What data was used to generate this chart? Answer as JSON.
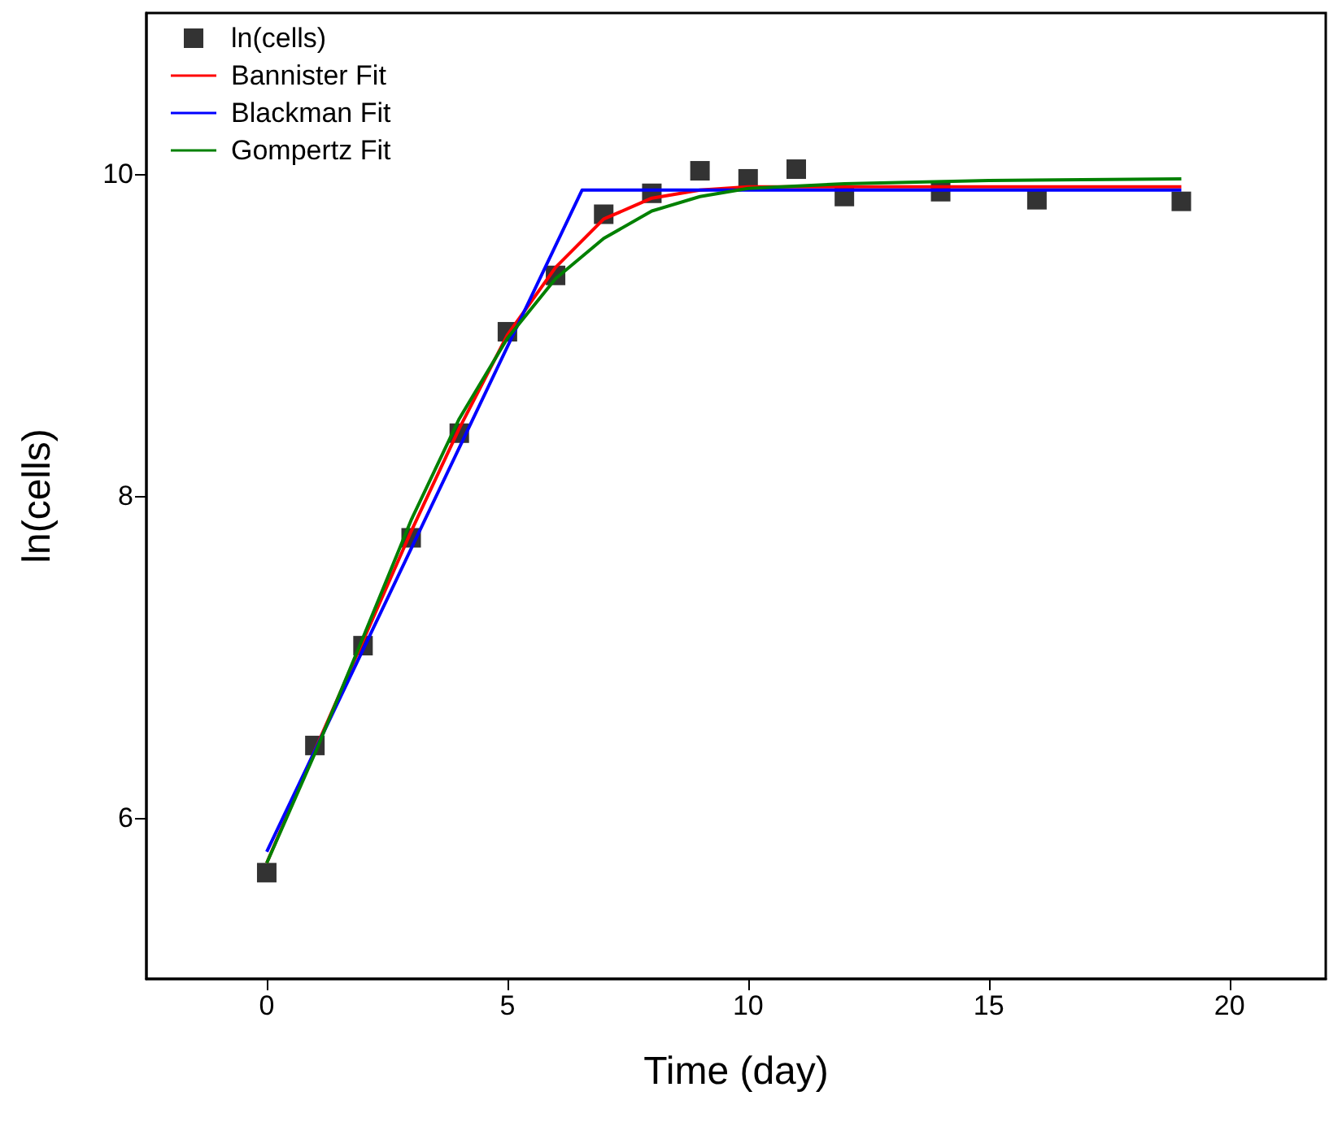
{
  "chart_data": {
    "type": "line",
    "xlabel": "Time (day)",
    "ylabel": "ln(cells)",
    "xlim": [
      -2.5,
      22
    ],
    "xticks": [
      0,
      5,
      10,
      15,
      20
    ],
    "ylim": [
      5,
      11
    ],
    "yticks": [
      6,
      8,
      10
    ],
    "grid": false,
    "legend": "top left",
    "series": [
      {
        "name": "ln(cells)",
        "type": "scatter",
        "marker": "square",
        "color": "#000000",
        "x": [
          0,
          1,
          2,
          3,
          4,
          5,
          6,
          7,
          8,
          9,
          10,
          11,
          12,
          14,
          16,
          19
        ],
        "values": [
          5.66,
          6.45,
          7.07,
          7.74,
          8.39,
          9.02,
          9.37,
          9.75,
          9.88,
          10.02,
          9.97,
          10.03,
          9.86,
          9.89,
          9.84,
          9.83
        ]
      },
      {
        "name": "Bannister Fit",
        "type": "line",
        "marker": "none",
        "line_style": "solid",
        "color": "#ff0000",
        "x": [
          0,
          1,
          2,
          3,
          4,
          5,
          6,
          7,
          8,
          9,
          10,
          12,
          15,
          19
        ],
        "values": [
          5.72,
          6.42,
          7.1,
          7.78,
          8.42,
          9.0,
          9.42,
          9.72,
          9.85,
          9.9,
          9.92,
          9.92,
          9.92,
          9.92
        ]
      },
      {
        "name": "Blackman Fit",
        "type": "line",
        "marker": "none",
        "line_style": "solid",
        "color": "#0000ff",
        "x": [
          0,
          6.55,
          19
        ],
        "values": [
          5.79,
          9.9,
          9.9
        ]
      },
      {
        "name": "Gompertz Fit",
        "type": "line",
        "marker": "none",
        "line_style": "solid",
        "color": "#008000",
        "x": [
          0,
          1,
          2,
          3,
          4,
          5,
          6,
          7,
          8,
          9,
          10,
          12,
          15,
          19
        ],
        "values": [
          5.72,
          6.4,
          7.12,
          7.85,
          8.48,
          8.98,
          9.35,
          9.6,
          9.77,
          9.86,
          9.91,
          9.94,
          9.96,
          9.97
        ]
      }
    ]
  }
}
